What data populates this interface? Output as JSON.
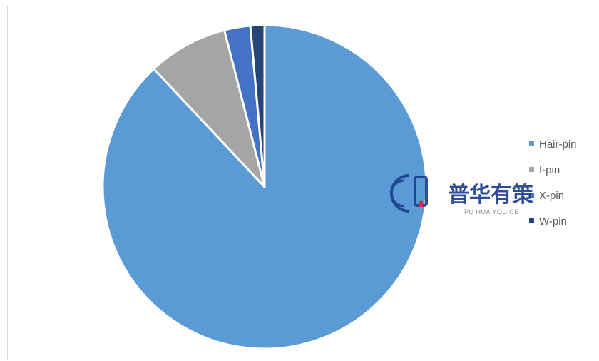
{
  "chart_data": {
    "type": "pie",
    "title": "",
    "legend_position": "right",
    "slices": [
      {
        "name": "Hair-pin",
        "value": 88.0,
        "color": "#5b9bd5"
      },
      {
        "name": "I-pin",
        "value": 8.0,
        "color": "#a5a5a5"
      },
      {
        "name": "X-pin",
        "value": 2.6,
        "color": "#4472c4"
      },
      {
        "name": "W-pin",
        "value": 1.4,
        "color": "#264478"
      }
    ]
  },
  "watermark": {
    "text": "普华有策",
    "subtext": "PU HUA YOU CE",
    "color": "#1f3f8f"
  }
}
